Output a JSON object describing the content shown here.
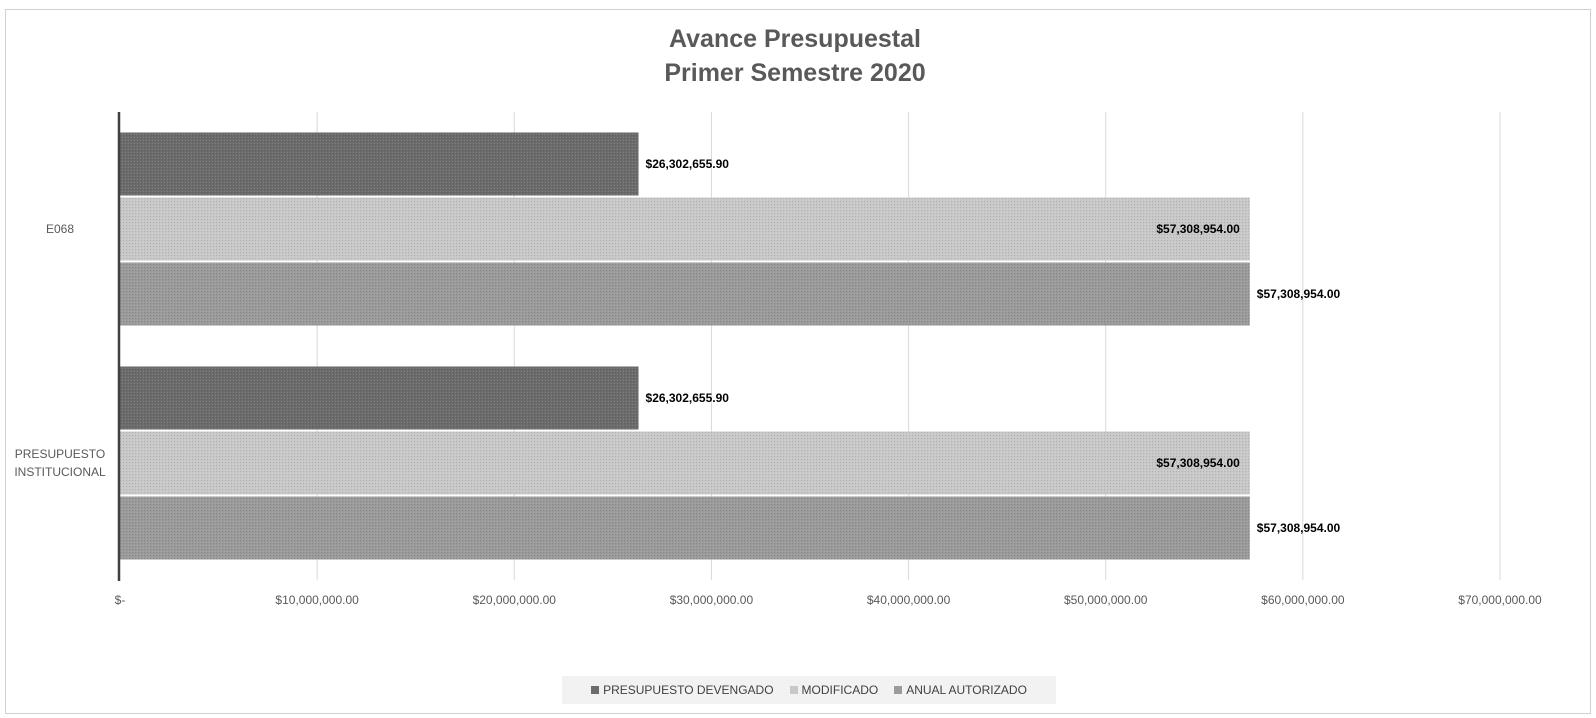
{
  "chart_data": {
    "type": "bar",
    "orientation": "horizontal",
    "title": "Avance Presupuestal",
    "subtitle": "Primer Semestre 2020",
    "categories": [
      "E068",
      "PRESUPUESTO INSTITUCIONAL"
    ],
    "category_label_lines": [
      [
        "E068"
      ],
      [
        "PRESUPUESTO",
        "INSTITUCIONAL"
      ]
    ],
    "series": [
      {
        "name": "PRESUPUESTO DEVENGADO",
        "values": [
          26302655.9,
          26302655.9
        ],
        "labels": [
          "$26,302,655.90",
          "$26,302,655.90"
        ],
        "color": "#6b6b6b",
        "label_position": "outside"
      },
      {
        "name": "MODIFICADO",
        "values": [
          57308954.0,
          57308954.0
        ],
        "labels": [
          "$57,308,954.00",
          "$57,308,954.00"
        ],
        "color": "#c8c8c8",
        "label_position": "inside"
      },
      {
        "name": "ANUAL AUTORIZADO",
        "values": [
          57308954.0,
          57308954.0
        ],
        "labels": [
          "$57,308,954.00",
          "$57,308,954.00"
        ],
        "color": "#9a9a9a",
        "label_position": "outside"
      }
    ],
    "xlim": [
      0,
      70000000
    ],
    "x_ticks": [
      0,
      10000000,
      20000000,
      30000000,
      40000000,
      50000000,
      60000000,
      70000000
    ],
    "x_tick_labels": [
      "$-",
      "$10,000,000.00",
      "$20,000,000.00",
      "$30,000,000.00",
      "$40,000,000.00",
      "$50,000,000.00",
      "$60,000,000.00",
      "$70,000,000.00"
    ],
    "grid": true,
    "legend_position": "bottom"
  }
}
